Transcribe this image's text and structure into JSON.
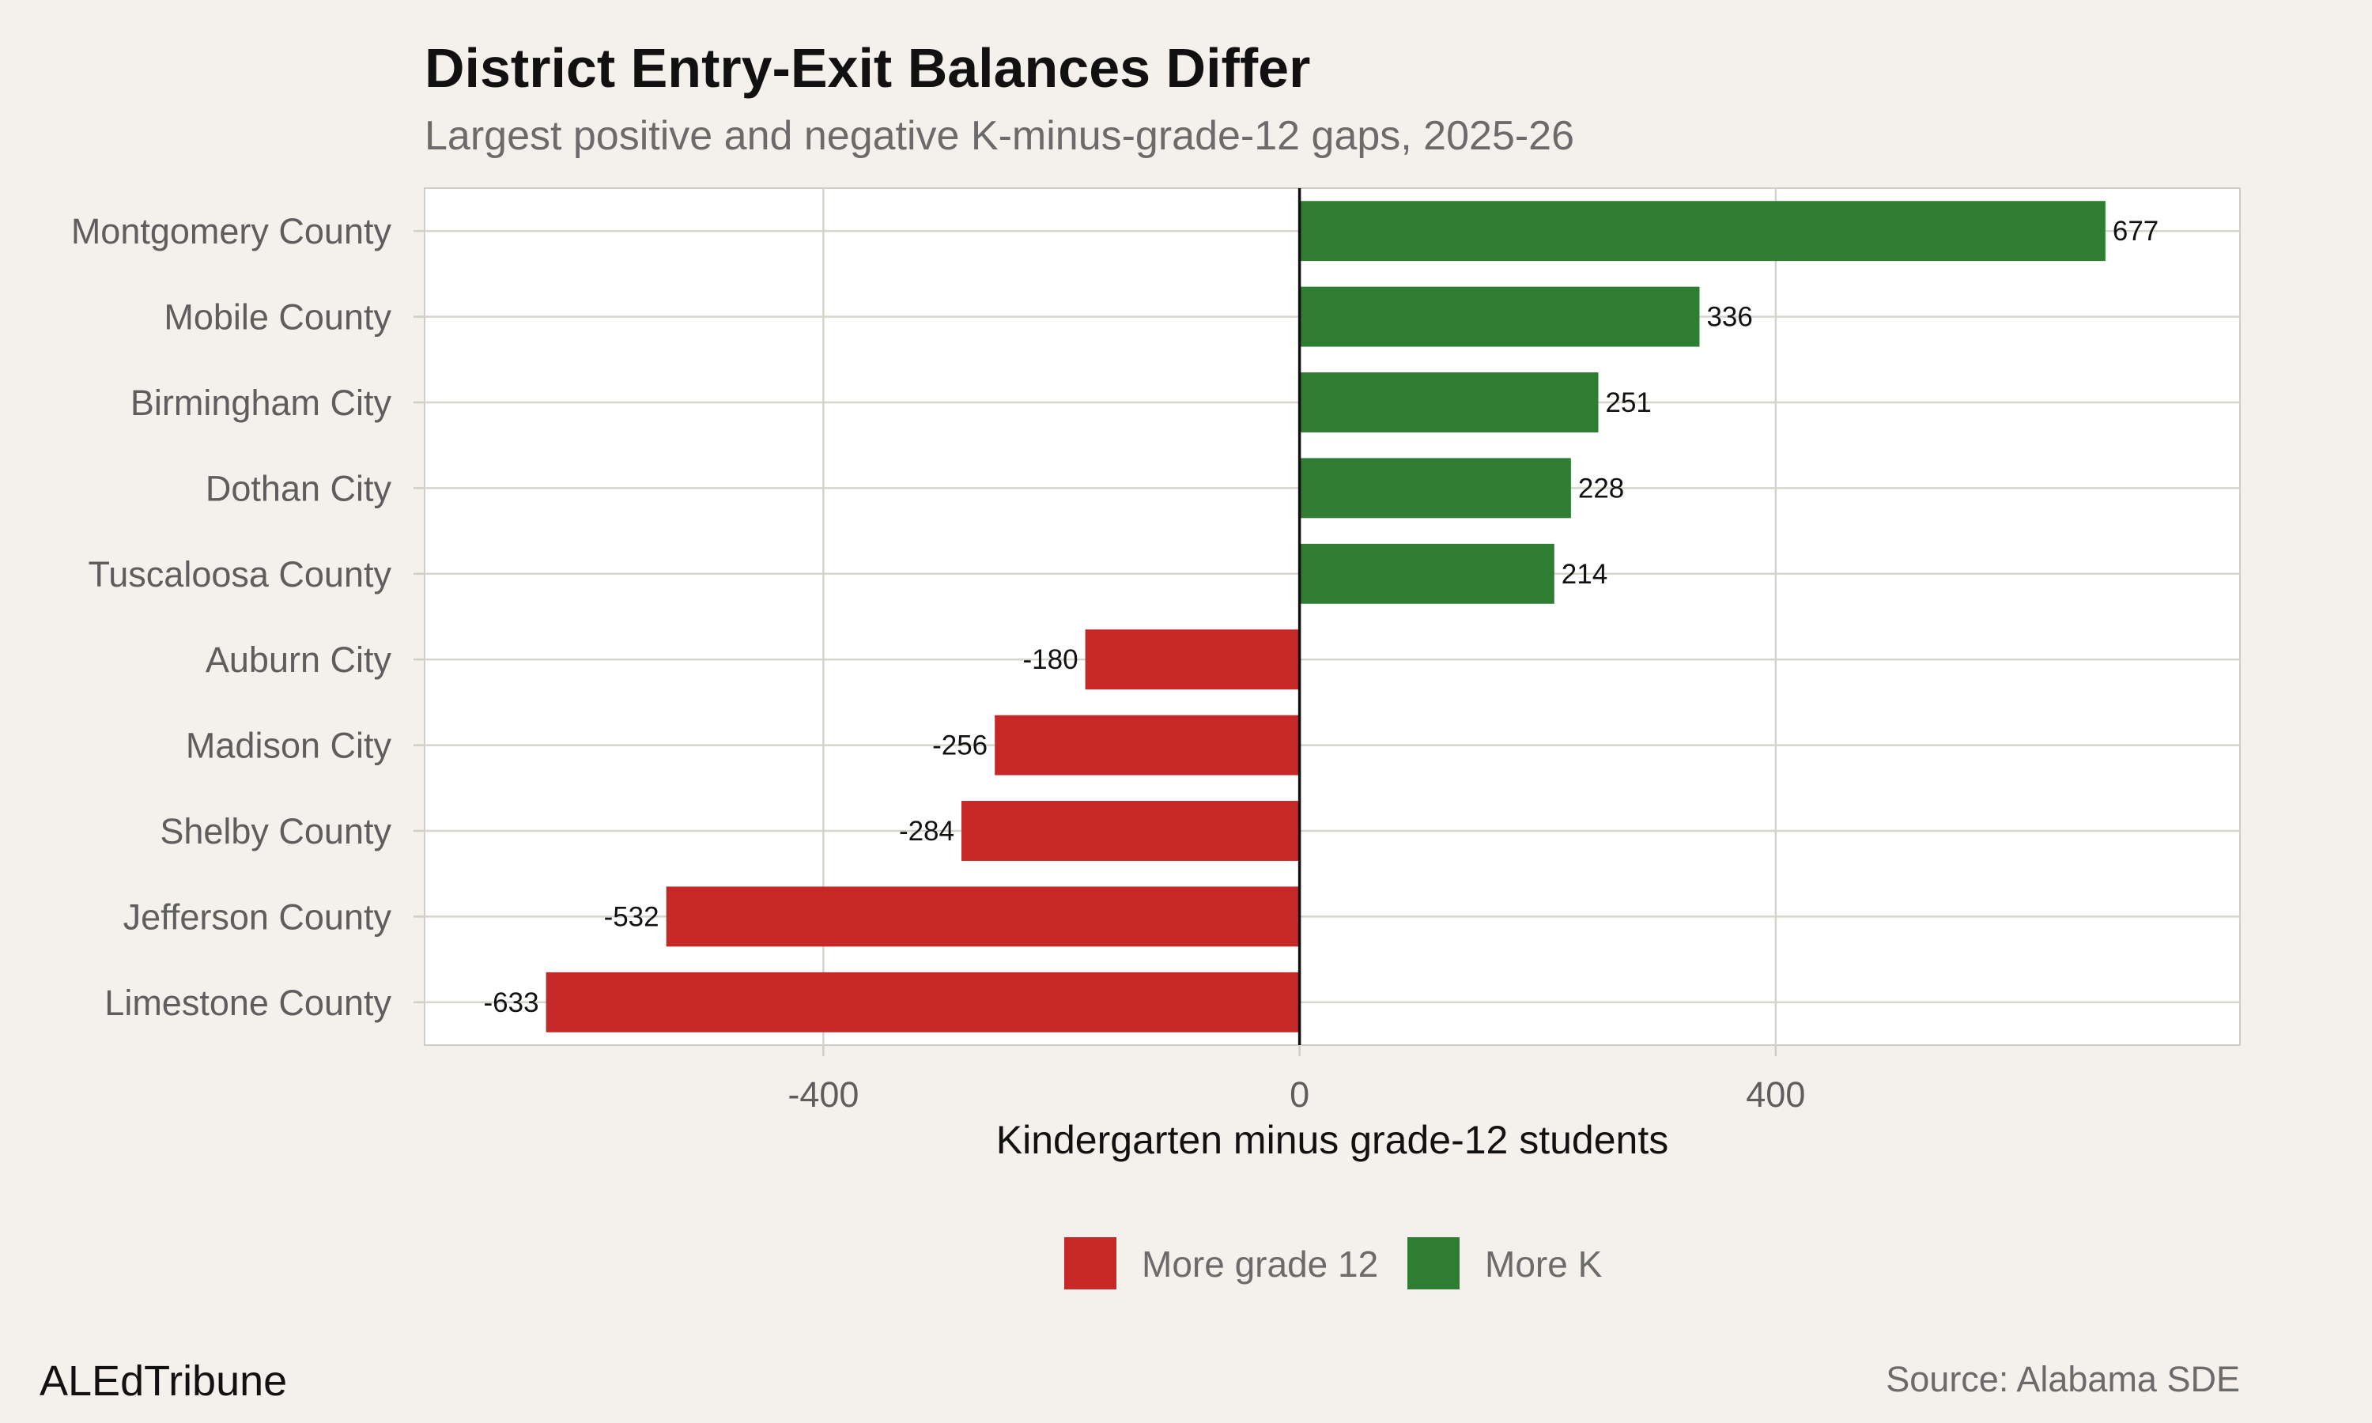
{
  "chart_data": {
    "type": "bar",
    "orientation": "horizontal",
    "title": "District Entry-Exit Balances Differ",
    "subtitle": "Largest positive and negative K-minus-grade-12 gaps, 2025-26",
    "xlabel": "Kindergarten minus grade-12 students",
    "ylabel": "",
    "xlim": [
      -735,
      790
    ],
    "xticks": [
      -400,
      0,
      400
    ],
    "xtick_labels": [
      "-400",
      "0",
      "400"
    ],
    "grid": true,
    "legend_position": "bottom",
    "categories": [
      "Montgomery County",
      "Mobile County",
      "Birmingham City",
      "Dothan City",
      "Tuscaloosa County",
      "Auburn City",
      "Madison City",
      "Shelby County",
      "Jefferson County",
      "Limestone County"
    ],
    "values": [
      677,
      336,
      251,
      228,
      214,
      -180,
      -256,
      -284,
      -532,
      -633
    ],
    "value_labels": [
      "677",
      "336",
      "251",
      "228",
      "214",
      "-180",
      "-256",
      "-284",
      "-532",
      "-633"
    ],
    "legend": [
      {
        "label": "More grade 12",
        "color": "#c62828"
      },
      {
        "label": "More K",
        "color": "#2e7d32"
      }
    ],
    "colors": {
      "negative": "#c62828",
      "positive": "#2e7d32"
    }
  },
  "footer": {
    "brand": "ALEdTribune",
    "source": "Source: Alabama SDE"
  }
}
